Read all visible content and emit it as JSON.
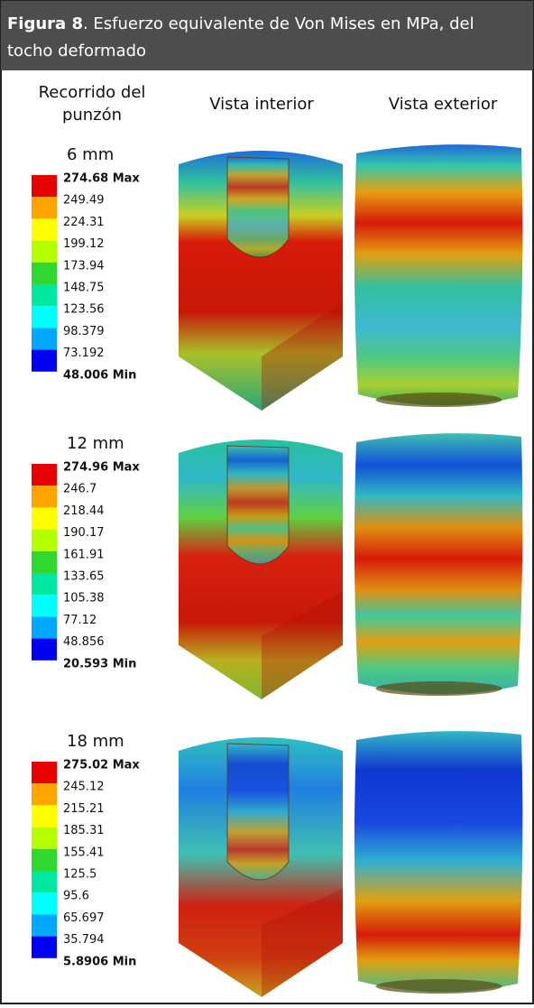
{
  "header": {
    "figure_label": "Figura 8",
    "caption_line1": ". Esfuerzo equivalente de Von Mises en MPa, del",
    "caption_line2": "tocho deformado"
  },
  "columns": {
    "travel_line1": "Recorrido del",
    "travel_line2": "punzón",
    "interior": "Vista interior",
    "exterior": "Vista exterior"
  },
  "legend_colors": [
    "#e60000",
    "#ffa500",
    "#ffff00",
    "#b4ff00",
    "#2ed82e",
    "#00e8a0",
    "#00ffff",
    "#00a8ff",
    "#0000f0"
  ],
  "rows": [
    {
      "label": "6 mm",
      "legend": [
        "274.68 Max",
        "249.49",
        "224.31",
        "199.12",
        "173.94",
        "148.75",
        "123.56",
        "98.379",
        "73.192",
        "48.006 Min"
      ]
    },
    {
      "label": "12 mm",
      "legend": [
        "274.96 Max",
        "246.7",
        "218.44",
        "190.17",
        "161.91",
        "133.65",
        "105.38",
        "77.12",
        "48.856",
        "20.593 Min"
      ]
    },
    {
      "label": "18 mm",
      "legend": [
        "275.02 Max",
        "245.12",
        "215.21",
        "185.31",
        "155.41",
        "125.5",
        "95.6",
        "65.697",
        "35.794",
        "5.8906 Min"
      ]
    }
  ]
}
